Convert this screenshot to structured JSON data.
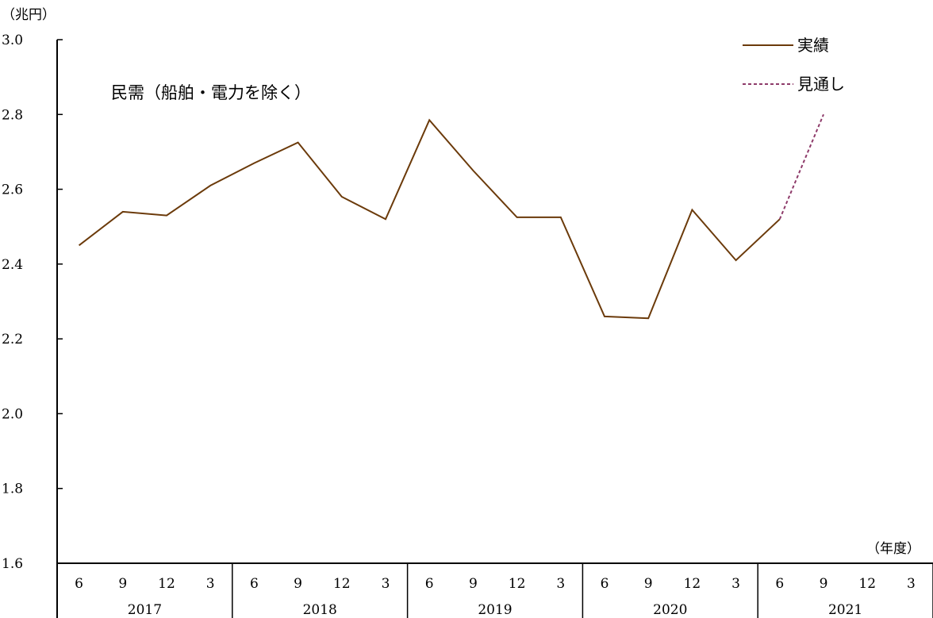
{
  "chart_data": {
    "type": "line",
    "title": "民需（船舶・電力を除く）",
    "ylabel": "（兆円）",
    "xlabel": "（年度）",
    "ylim": [
      1.6,
      3.0
    ],
    "yticks": [
      1.6,
      1.8,
      2.0,
      2.2,
      2.4,
      2.6,
      2.8,
      3.0
    ],
    "ytick_labels": [
      "1.6",
      "1.8",
      "2.0",
      "2.2",
      "2.4",
      "2.6",
      "2.8",
      "3.0"
    ],
    "grid": false,
    "legend_position": "top-right",
    "years": [
      "2017",
      "2018",
      "2019",
      "2020",
      "2021"
    ],
    "months": [
      "6",
      "9",
      "12",
      "3"
    ],
    "categories": [
      "2017-6",
      "2017-9",
      "2017-12",
      "2017-3",
      "2018-6",
      "2018-9",
      "2018-12",
      "2018-3",
      "2019-6",
      "2019-9",
      "2019-12",
      "2019-3",
      "2020-6",
      "2020-9",
      "2020-12",
      "2020-3",
      "2021-6",
      "2021-9",
      "2021-12",
      "2021-3"
    ],
    "series": [
      {
        "name": "実績",
        "color": "#6b3a0a",
        "style": "solid",
        "values": [
          2.45,
          2.54,
          2.53,
          2.61,
          2.67,
          2.725,
          2.58,
          2.52,
          2.785,
          2.65,
          2.525,
          2.525,
          2.26,
          2.255,
          2.545,
          2.41,
          2.52,
          null,
          null,
          null
        ]
      },
      {
        "name": "見通し",
        "color": "#8e3b6a",
        "style": "dashed",
        "values": [
          null,
          null,
          null,
          null,
          null,
          null,
          null,
          null,
          null,
          null,
          null,
          null,
          null,
          null,
          null,
          null,
          2.52,
          2.8,
          null,
          null
        ]
      }
    ]
  }
}
